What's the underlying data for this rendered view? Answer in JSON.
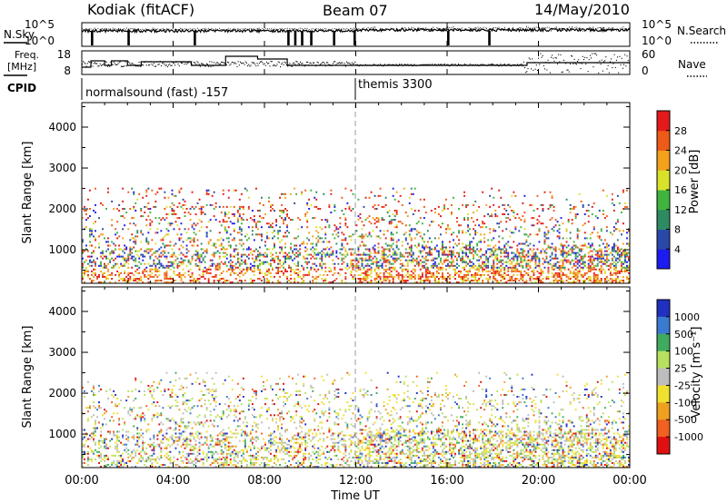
{
  "header": {
    "radar": "Kodiak (fitACF)",
    "beam": "Beam 07",
    "date": "14/May/2010"
  },
  "top_panel": {
    "left_label": "N.Sky",
    "right_label": "N.Search",
    "y_ticks_left": [
      "10^5",
      "10^0"
    ],
    "y_ticks_right": [
      "10^5",
      "10^0"
    ]
  },
  "freq_panel": {
    "left_label_1": "Freq.",
    "left_label_2": "[MHz]",
    "right_label": "Nave",
    "y_ticks_left": [
      "18",
      "8"
    ],
    "y_ticks_right": [
      "60",
      "0"
    ]
  },
  "cpid": {
    "label": "CPID",
    "mode_1": "normalsound (fast) -157",
    "mode_2": "themis 3300"
  },
  "chart_data": [
    {
      "type": "heatmap",
      "name": "power",
      "ylabel": "Slant Range [km]",
      "y_ticks": [
        "1000",
        "2000",
        "3000",
        "4000"
      ],
      "ylim": [
        180,
        4600
      ],
      "xlim_hours": [
        0,
        24
      ],
      "colorbar": {
        "label": "Power [dB]",
        "ticks": [
          "4",
          "8",
          "12",
          "16",
          "20",
          "24",
          "28"
        ],
        "colors": [
          "#1c1cf0",
          "#2a48a8",
          "#2e8a62",
          "#3fb53f",
          "#d9e22b",
          "#f3a21b",
          "#ee5a18",
          "#e31a1a"
        ]
      }
    },
    {
      "type": "heatmap",
      "name": "velocity",
      "ylabel": "Slant Range [km]",
      "y_ticks": [
        "1000",
        "2000",
        "3000",
        "4000"
      ],
      "ylim": [
        180,
        4600
      ],
      "xlim_hours": [
        0,
        24
      ],
      "colorbar": {
        "label": "Velocity [m s⁻¹]",
        "ticks": [
          "1000",
          "500",
          "100",
          "25",
          "-25",
          "-100",
          "-500",
          "-1000"
        ],
        "colors": [
          "#2030c0",
          "#3a7ad0",
          "#3faa60",
          "#b8e060",
          "#bdbdbd",
          "#f0e030",
          "#f0a020",
          "#f06020",
          "#e01010"
        ]
      }
    }
  ],
  "x_axis": {
    "ticks": [
      "00:00",
      "04:00",
      "08:00",
      "12:00",
      "16:00",
      "20:00",
      "00:00"
    ],
    "label": "Time UT"
  }
}
